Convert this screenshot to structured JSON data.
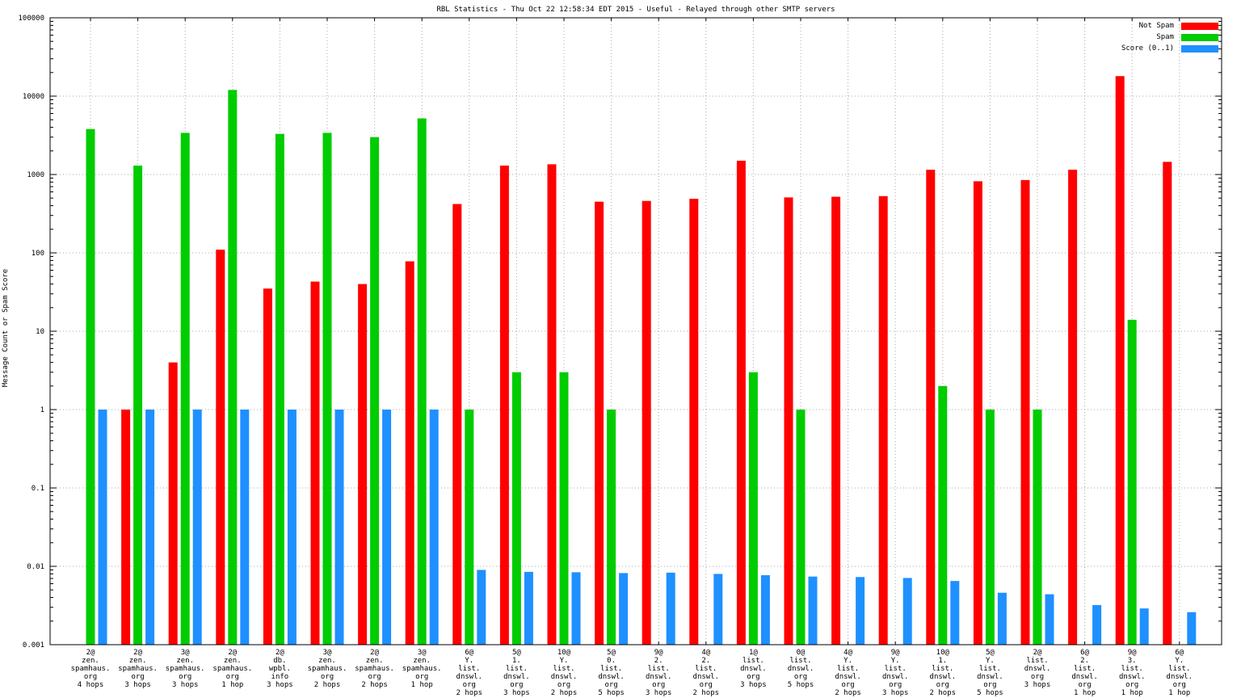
{
  "chart_data": {
    "type": "bar",
    "title": "RBL Statistics - Thu Oct 22 12:58:34 EDT 2015 - Useful - Relayed through other SMTP servers",
    "ylabel": "Message Count or Spam Score",
    "y_scale": "log",
    "ylim": [
      0.001,
      100000
    ],
    "y_ticks": [
      "100000",
      "10000",
      "1000",
      "100",
      "10",
      "1",
      "0.1",
      "0.01",
      "0.001"
    ],
    "grid": true,
    "legend_position": "top-right",
    "legend": [
      {
        "label": "Not Spam",
        "color": "#ff0000"
      },
      {
        "label": "Spam",
        "color": "#00cc00"
      },
      {
        "label": "Score (0..1)",
        "color": "#1e90ff"
      }
    ],
    "categories": [
      [
        "2@",
        "zen.",
        "spamhaus.",
        "org",
        "4 hops"
      ],
      [
        "2@",
        "zen.",
        "spamhaus.",
        "org",
        "3 hops"
      ],
      [
        "3@",
        "zen.",
        "spamhaus.",
        "org",
        "3 hops"
      ],
      [
        "2@",
        "zen.",
        "spamhaus.",
        "org",
        "1 hop"
      ],
      [
        "2@",
        "db.",
        "wpbl.",
        "info",
        "3 hops"
      ],
      [
        "3@",
        "zen.",
        "spamhaus.",
        "org",
        "2 hops"
      ],
      [
        "2@",
        "zen.",
        "spamhaus.",
        "org",
        "2 hops"
      ],
      [
        "3@",
        "zen.",
        "spamhaus.",
        "org",
        "1 hop"
      ],
      [
        "6@",
        "Y.",
        "list.",
        "dnswl.",
        "org",
        "2 hops"
      ],
      [
        "5@",
        "1.",
        "list.",
        "dnswl.",
        "org",
        "3 hops"
      ],
      [
        "10@",
        "Y.",
        "list.",
        "dnswl.",
        "org",
        "2 hops"
      ],
      [
        "5@",
        "0.",
        "list.",
        "dnswl.",
        "org",
        "5 hops"
      ],
      [
        "9@",
        "2.",
        "list.",
        "dnswl.",
        "org",
        "3 hops"
      ],
      [
        "4@",
        "2.",
        "list.",
        "dnswl.",
        "org",
        "2 hops"
      ],
      [
        "1@",
        "list.",
        "dnswl.",
        "org",
        "3 hops"
      ],
      [
        "0@",
        "list.",
        "dnswl.",
        "org",
        "5 hops"
      ],
      [
        "4@",
        "Y.",
        "list.",
        "dnswl.",
        "org",
        "2 hops"
      ],
      [
        "9@",
        "Y.",
        "list.",
        "dnswl.",
        "org",
        "3 hops"
      ],
      [
        "10@",
        "1.",
        "list.",
        "dnswl.",
        "org",
        "2 hops"
      ],
      [
        "5@",
        "Y.",
        "list.",
        "dnswl.",
        "org",
        "5 hops"
      ],
      [
        "2@",
        "list.",
        "dnswl.",
        "org",
        "3 hops"
      ],
      [
        "6@",
        "2.",
        "list.",
        "dnswl.",
        "org",
        "1 hop"
      ],
      [
        "9@",
        "3.",
        "list.",
        "dnswl.",
        "org",
        "1 hop"
      ],
      [
        "6@",
        "Y.",
        "list.",
        "dnswl.",
        "org",
        "1 hop"
      ]
    ],
    "series": [
      {
        "name": "Not Spam",
        "color": "#ff0000",
        "values": [
          null,
          1,
          4,
          110,
          35,
          43,
          40,
          78,
          420,
          1300,
          1350,
          450,
          460,
          490,
          1500,
          510,
          520,
          530,
          1150,
          820,
          850,
          1150,
          18000,
          1450
        ]
      },
      {
        "name": "Spam",
        "color": "#00cc00",
        "values": [
          3800,
          1300,
          3400,
          12000,
          3300,
          3400,
          3000,
          5200,
          1,
          3,
          3,
          1,
          null,
          null,
          3,
          1,
          null,
          null,
          2,
          1,
          1,
          null,
          14,
          null
        ]
      },
      {
        "name": "Score (0..1)",
        "color": "#1e90ff",
        "values": [
          1,
          1,
          1,
          1,
          1,
          1,
          1,
          1,
          0.009,
          0.0085,
          0.0084,
          0.0082,
          0.0083,
          0.008,
          0.0077,
          0.0074,
          0.0073,
          0.0071,
          0.0065,
          0.0046,
          0.0044,
          0.0032,
          0.0029,
          0.0026
        ]
      }
    ]
  }
}
